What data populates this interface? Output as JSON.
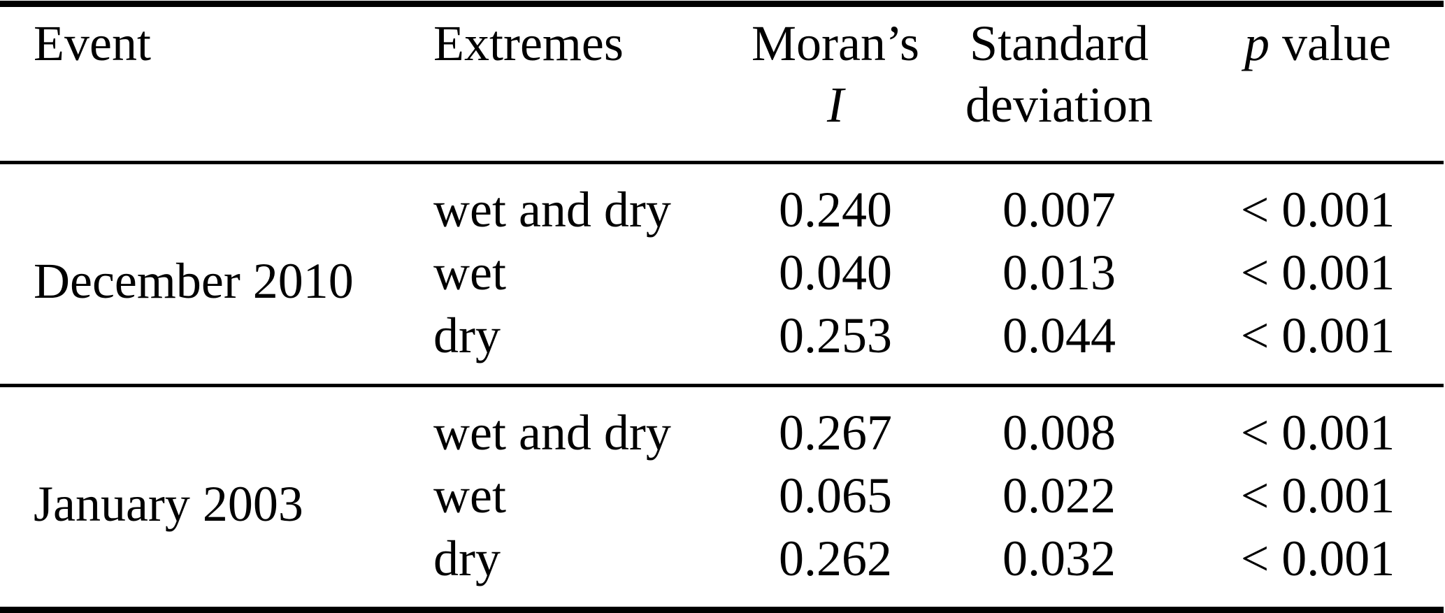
{
  "header": {
    "event": "Event",
    "extremes": "Extremes",
    "morans_line1": "Moran’s",
    "morans_line2": "I",
    "std_line1": "Standard",
    "std_line2": "deviation",
    "p_symbol": "p",
    "p_rest": "value"
  },
  "sections": [
    {
      "event": "December 2010",
      "rows": [
        {
          "extremes": "wet and dry",
          "moran": "0.240",
          "sd": "0.007",
          "p": "< 0.001"
        },
        {
          "extremes": "wet",
          "moran": "0.040",
          "sd": "0.013",
          "p": "< 0.001"
        },
        {
          "extremes": "dry",
          "moran": "0.253",
          "sd": "0.044",
          "p": "< 0.001"
        }
      ]
    },
    {
      "event": "January 2003",
      "rows": [
        {
          "extremes": "wet and dry",
          "moran": "0.267",
          "sd": "0.008",
          "p": "< 0.001"
        },
        {
          "extremes": "wet",
          "moran": "0.065",
          "sd": "0.022",
          "p": "< 0.001"
        },
        {
          "extremes": "dry",
          "moran": "0.262",
          "sd": "0.032",
          "p": "< 0.001"
        }
      ]
    }
  ],
  "colors": {
    "text": "#000000",
    "background": "#ffffff",
    "rule": "#000000"
  },
  "chart_data": {
    "type": "table",
    "title": "",
    "columns": [
      "Event",
      "Extremes",
      "Moran's I",
      "Standard deviation",
      "p value"
    ],
    "rows": [
      [
        "December 2010",
        "wet and dry",
        0.24,
        0.007,
        "< 0.001"
      ],
      [
        "December 2010",
        "wet",
        0.04,
        0.013,
        "< 0.001"
      ],
      [
        "December 2010",
        "dry",
        0.253,
        0.044,
        "< 0.001"
      ],
      [
        "January 2003",
        "wet and dry",
        0.267,
        0.008,
        "< 0.001"
      ],
      [
        "January 2003",
        "wet",
        0.065,
        0.022,
        "< 0.001"
      ],
      [
        "January 2003",
        "dry",
        0.262,
        0.032,
        "< 0.001"
      ]
    ]
  }
}
